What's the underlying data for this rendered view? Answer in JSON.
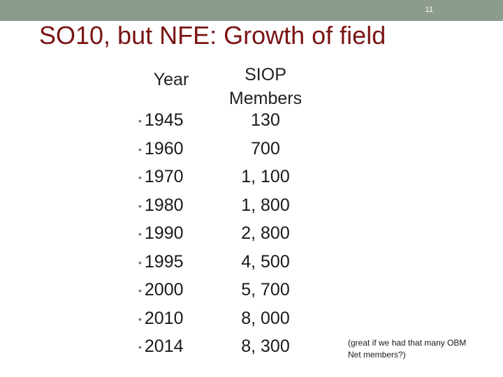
{
  "slide": {
    "number": "11",
    "title": "SO10, but NFE: Growth of field"
  },
  "table": {
    "year_header": "Year",
    "members_header": "SIOP Members",
    "rows": [
      {
        "year": "1945",
        "members": "130"
      },
      {
        "year": "1960",
        "members": "700"
      },
      {
        "year": "1970",
        "members": "1, 100"
      },
      {
        "year": "1980",
        "members": "1, 800"
      },
      {
        "year": "1990",
        "members": "2, 800"
      },
      {
        "year": "1995",
        "members": "4, 500"
      },
      {
        "year": "2000",
        "members": "5, 700"
      },
      {
        "year": "2010",
        "members": "8, 000"
      },
      {
        "year": "2014",
        "members": "8, 300"
      }
    ]
  },
  "note": "(great if we had that many OBM Net members?)",
  "colors": {
    "title": "#7a1414",
    "topbar": "#8c9b8c"
  }
}
